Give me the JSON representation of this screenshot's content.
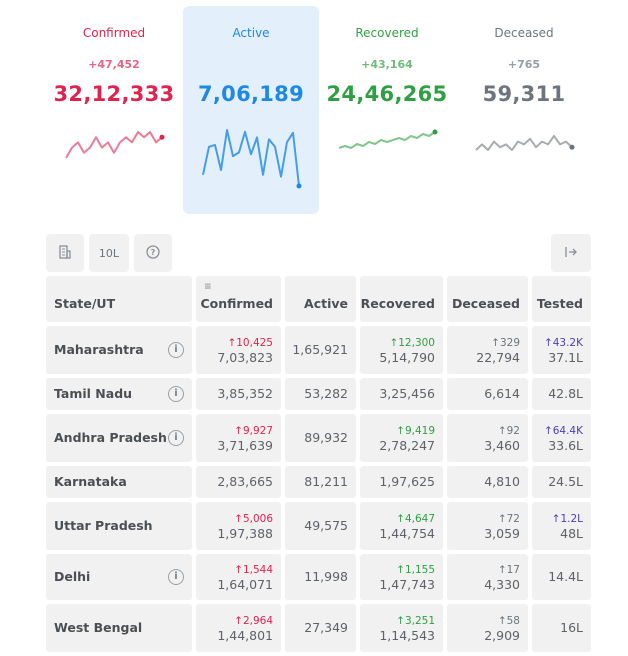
{
  "summary": {
    "confirmed": {
      "label": "Confirmed",
      "delta": "+47,452",
      "total": "32,12,333",
      "color": "#e0234e",
      "spark": [
        8,
        6,
        5,
        7,
        6,
        4,
        6,
        5,
        7,
        5,
        4,
        5,
        3,
        4,
        3,
        5,
        4
      ]
    },
    "active": {
      "label": "Active",
      "delta": "",
      "total": "7,06,189",
      "color": "#1d88e5",
      "spark": [
        60,
        30,
        28,
        55,
        12,
        40,
        36,
        14,
        38,
        20,
        60,
        22,
        30,
        62,
        25,
        15,
        72
      ]
    },
    "recovered": {
      "label": "Recovered",
      "delta": "+43,164",
      "total": "24,46,265",
      "color": "#2ea043",
      "spark": [
        10,
        9,
        10,
        8,
        9,
        7,
        8,
        6,
        7,
        6,
        5,
        6,
        4,
        5,
        3,
        4,
        2
      ]
    },
    "deceased": {
      "label": "Deceased",
      "delta": "+765",
      "total": "59,311",
      "color": "#6c757d",
      "spark": [
        8,
        6,
        8,
        5,
        7,
        6,
        8,
        5,
        6,
        4,
        7,
        5,
        6,
        3,
        6,
        5,
        7
      ]
    }
  },
  "toolbar": {
    "building_icon": "building-icon",
    "per_toggle": "10L",
    "help_icon": "question-circle-icon",
    "expand_icon": "table-expand-icon"
  },
  "table": {
    "headers": [
      "State/UT",
      "Confirmed",
      "Active",
      "Recovered",
      "Deceased",
      "Tested"
    ],
    "sort_icon": "filter-sort-icon",
    "rows": [
      {
        "state": "Maharashtra",
        "info": true,
        "c_delta": "↑10,425",
        "confirmed": "7,03,823",
        "active": "1,65,921",
        "r_delta": "↑12,300",
        "recovered": "5,14,790",
        "d_delta": "↑329",
        "deceased": "22,794",
        "t_delta": "↑43.2K",
        "tested": "37.1L"
      },
      {
        "state": "Tamil Nadu",
        "info": true,
        "c_delta": "",
        "confirmed": "3,85,352",
        "active": "53,282",
        "r_delta": "",
        "recovered": "3,25,456",
        "d_delta": "",
        "deceased": "6,614",
        "t_delta": "",
        "tested": "42.8L"
      },
      {
        "state": "Andhra Pradesh",
        "info": true,
        "c_delta": "↑9,927",
        "confirmed": "3,71,639",
        "active": "89,932",
        "r_delta": "↑9,419",
        "recovered": "2,78,247",
        "d_delta": "↑92",
        "deceased": "3,460",
        "t_delta": "↑64.4K",
        "tested": "33.6L"
      },
      {
        "state": "Karnataka",
        "info": false,
        "c_delta": "",
        "confirmed": "2,83,665",
        "active": "81,211",
        "r_delta": "",
        "recovered": "1,97,625",
        "d_delta": "",
        "deceased": "4,810",
        "t_delta": "",
        "tested": "24.5L"
      },
      {
        "state": "Uttar Pradesh",
        "info": false,
        "c_delta": "↑5,006",
        "confirmed": "1,97,388",
        "active": "49,575",
        "r_delta": "↑4,647",
        "recovered": "1,44,754",
        "d_delta": "↑72",
        "deceased": "3,059",
        "t_delta": "↑1.2L",
        "tested": "48L"
      },
      {
        "state": "Delhi",
        "info": true,
        "c_delta": "↑1,544",
        "confirmed": "1,64,071",
        "active": "11,998",
        "r_delta": "↑1,155",
        "recovered": "1,47,743",
        "d_delta": "↑17",
        "deceased": "4,330",
        "t_delta": "",
        "tested": "14.4L"
      },
      {
        "state": "West Bengal",
        "info": false,
        "c_delta": "↑2,964",
        "confirmed": "1,44,801",
        "active": "27,349",
        "r_delta": "↑3,251",
        "recovered": "1,14,543",
        "d_delta": "↑58",
        "deceased": "2,909",
        "t_delta": "",
        "tested": "16L"
      }
    ]
  }
}
